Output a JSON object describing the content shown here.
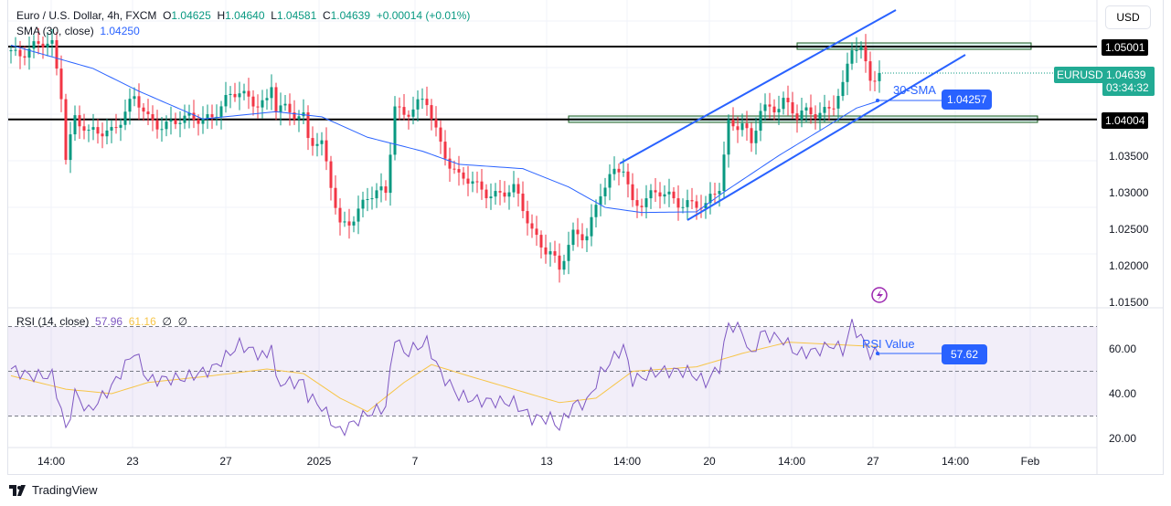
{
  "header": {
    "symbol": "Euro / U.S. Dollar, 4h, FXCM",
    "o_label": "O",
    "o": "1.04625",
    "h_label": "H",
    "h": "1.04640",
    "l_label": "L",
    "l": "1.04581",
    "c_label": "C",
    "c": "1.04639",
    "change": "+0.00014 (+0.01%)",
    "sma_label": "SMA (30, close)",
    "sma_value": "1.04250"
  },
  "currency": "USD",
  "price_tags": {
    "level_high": "1.05001",
    "level_low": "1.04004",
    "symbol": "EURUSD",
    "last": "1.04639",
    "countdown": "03:34:32",
    "sma_tag": "1.04257",
    "sma_annotation": "30-SMA"
  },
  "rsi": {
    "label": "RSI (14, close)",
    "value": "57.96",
    "ma": "61.16",
    "ph1": "∅",
    "ph2": "∅",
    "annotation": "RSI Value",
    "tag": "57.62"
  },
  "brand": "TradingView",
  "colors": {
    "up": "#089981",
    "down": "#f23645",
    "sma": "#2962ff",
    "rsi": "#7e57c2",
    "rsi_ma": "#f7c548"
  },
  "chart_data": [
    {
      "type": "candlestick",
      "title": "Euro / U.S. Dollar, 4h, FXCM",
      "y_ticks": [
        "1.05001",
        "1.04004",
        "1.03500",
        "1.03000",
        "1.02500",
        "1.02000",
        "1.01500"
      ],
      "y_tick_values": [
        1.05001,
        1.04004,
        1.035,
        1.03,
        1.025,
        1.02,
        1.015
      ],
      "ylim": [
        1.0135,
        1.0565
      ],
      "x_ticks": [
        "14:00",
        "23",
        "27",
        "2025",
        "7",
        "13",
        "14:00",
        "20",
        "14:00",
        "27",
        "14:00",
        "Feb"
      ],
      "close_path": [
        [
          0,
          1.0495
        ],
        [
          9,
          1.05
        ],
        [
          11,
          1.044
        ],
        [
          12,
          1.0355
        ],
        [
          14,
          1.0405
        ],
        [
          17,
          1.0375
        ],
        [
          22,
          1.039
        ],
        [
          27,
          1.0425
        ],
        [
          30,
          1.04
        ],
        [
          38,
          1.0395
        ],
        [
          44,
          1.041
        ],
        [
          50,
          1.0435
        ],
        [
          56,
          1.0425
        ],
        [
          57,
          1.0445
        ],
        [
          58,
          1.041
        ],
        [
          64,
          1.041
        ],
        [
          65,
          1.038
        ],
        [
          68,
          1.036
        ],
        [
          71,
          1.028
        ],
        [
          72,
          1.0255
        ],
        [
          78,
          1.029
        ],
        [
          82,
          1.03
        ],
        [
          84,
          1.0425
        ],
        [
          86,
          1.041
        ],
        [
          91,
          1.042
        ],
        [
          94,
          1.037
        ],
        [
          98,
          1.032
        ],
        [
          102,
          1.0305
        ],
        [
          110,
          1.03
        ],
        [
          114,
          1.025
        ],
        [
          118,
          1.022
        ],
        [
          120,
          1.019
        ],
        [
          123,
          1.024
        ],
        [
          126,
          1.025
        ],
        [
          129,
          1.03
        ],
        [
          134,
          1.0335
        ],
        [
          136,
          1.029
        ],
        [
          142,
          1.0295
        ],
        [
          148,
          1.029
        ],
        [
          152,
          1.0275
        ],
        [
          155,
          1.031
        ],
        [
          157,
          1.04
        ],
        [
          160,
          1.0395
        ],
        [
          162,
          1.036
        ],
        [
          164,
          1.041
        ],
        [
          169,
          1.043
        ],
        [
          172,
          1.04
        ],
        [
          176,
          1.041
        ],
        [
          180,
          1.0425
        ],
        [
          182,
          1.044
        ],
        [
          184,
          1.0495
        ],
        [
          186,
          1.0495
        ],
        [
          188,
          1.0465
        ],
        [
          190,
          1.0464
        ]
      ],
      "sma_path": [
        [
          0,
          1.0502
        ],
        [
          18,
          1.047
        ],
        [
          28,
          1.0439
        ],
        [
          42,
          1.0401
        ],
        [
          58,
          1.0411
        ],
        [
          68,
          1.0404
        ],
        [
          78,
          1.0376
        ],
        [
          90,
          1.0357
        ],
        [
          98,
          1.0339
        ],
        [
          112,
          1.0333
        ],
        [
          122,
          1.0308
        ],
        [
          130,
          1.028
        ],
        [
          138,
          1.0273
        ],
        [
          150,
          1.0274
        ],
        [
          156,
          1.0301
        ],
        [
          168,
          1.0351
        ],
        [
          178,
          1.0389
        ],
        [
          185,
          1.0416
        ],
        [
          190,
          1.0426
        ]
      ],
      "level_lines": [
        1.05001,
        1.04004
      ]
    },
    {
      "type": "line",
      "title": "RSI (14, close)",
      "y_ticks": [
        "60.00",
        "40.00",
        "20.00"
      ],
      "y_tick_values": [
        60,
        40,
        20
      ],
      "bands": [
        70,
        50,
        30
      ],
      "ylim": [
        15,
        75
      ],
      "rsi_path": [
        [
          0,
          51
        ],
        [
          4,
          48
        ],
        [
          9,
          48
        ],
        [
          11,
          33
        ],
        [
          12,
          23
        ],
        [
          14,
          40
        ],
        [
          17,
          32
        ],
        [
          22,
          43
        ],
        [
          27,
          59
        ],
        [
          30,
          46
        ],
        [
          38,
          47
        ],
        [
          44,
          51
        ],
        [
          50,
          62
        ],
        [
          56,
          56
        ],
        [
          57,
          64
        ],
        [
          58,
          45
        ],
        [
          64,
          45
        ],
        [
          65,
          39
        ],
        [
          68,
          34
        ],
        [
          71,
          25
        ],
        [
          72,
          23
        ],
        [
          78,
          31
        ],
        [
          82,
          34
        ],
        [
          84,
          66
        ],
        [
          86,
          58
        ],
        [
          91,
          63
        ],
        [
          94,
          49
        ],
        [
          98,
          39
        ],
        [
          102,
          37
        ],
        [
          110,
          36
        ],
        [
          114,
          29
        ],
        [
          118,
          29
        ],
        [
          120,
          25
        ],
        [
          123,
          35
        ],
        [
          126,
          36
        ],
        [
          129,
          49
        ],
        [
          134,
          61
        ],
        [
          136,
          46
        ],
        [
          142,
          50
        ],
        [
          148,
          50
        ],
        [
          152,
          45
        ],
        [
          155,
          52
        ],
        [
          157,
          71
        ],
        [
          160,
          68
        ],
        [
          162,
          56
        ],
        [
          164,
          67
        ],
        [
          169,
          64
        ],
        [
          172,
          58
        ],
        [
          176,
          59
        ],
        [
          180,
          62
        ],
        [
          182,
          59
        ],
        [
          184,
          71
        ],
        [
          186,
          65
        ],
        [
          188,
          58
        ],
        [
          190,
          58
        ]
      ],
      "ma_path": [
        [
          0,
          48
        ],
        [
          12,
          42
        ],
        [
          22,
          40
        ],
        [
          30,
          45
        ],
        [
          44,
          48
        ],
        [
          56,
          51
        ],
        [
          64,
          49
        ],
        [
          72,
          38
        ],
        [
          78,
          32
        ],
        [
          86,
          45
        ],
        [
          92,
          53
        ],
        [
          100,
          48
        ],
        [
          110,
          42
        ],
        [
          120,
          36
        ],
        [
          128,
          38
        ],
        [
          136,
          50
        ],
        [
          150,
          52
        ],
        [
          160,
          58
        ],
        [
          170,
          63
        ],
        [
          180,
          62
        ],
        [
          190,
          61
        ]
      ]
    }
  ]
}
